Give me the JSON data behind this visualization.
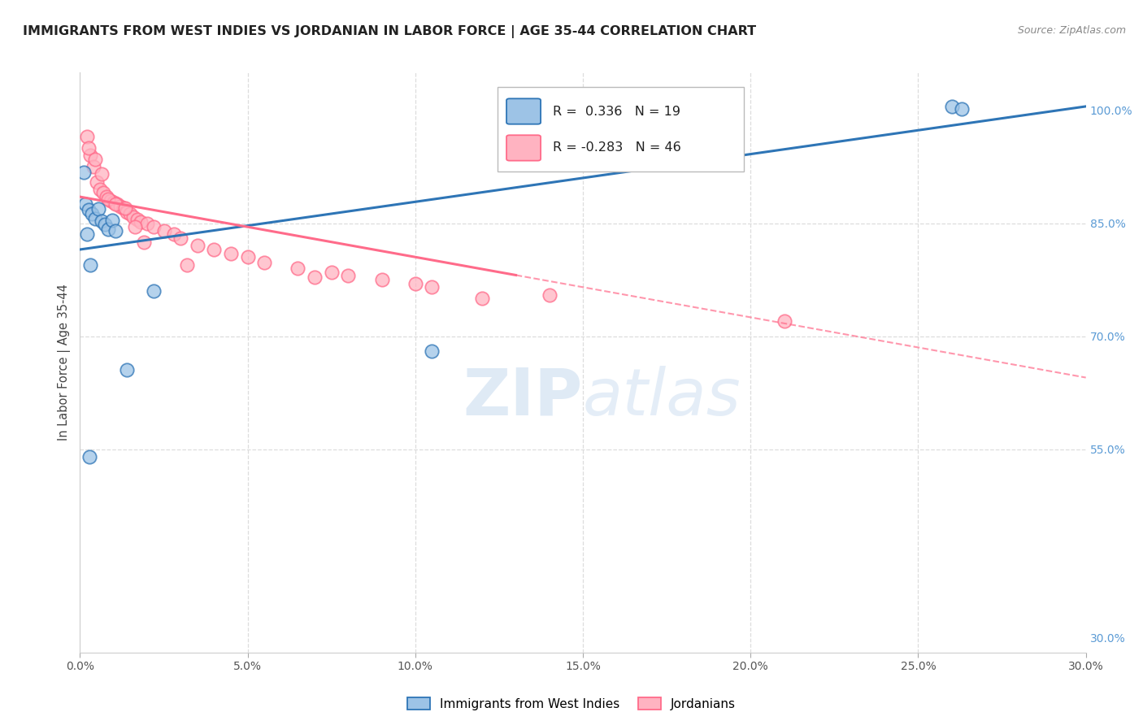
{
  "title": "IMMIGRANTS FROM WEST INDIES VS JORDANIAN IN LABOR FORCE | AGE 35-44 CORRELATION CHART",
  "source": "Source: ZipAtlas.com",
  "xlabel_vals": [
    0.0,
    5.0,
    10.0,
    15.0,
    20.0,
    25.0,
    30.0
  ],
  "xlabel_ticks": [
    "0.0%",
    "5.0%",
    "10.0%",
    "15.0%",
    "20.0%",
    "25.0%",
    "30.0%"
  ],
  "xmin": 0.0,
  "xmax": 30.0,
  "ymin": 28.0,
  "ymax": 105.0,
  "right_ytick_vals": [
    100.0,
    85.0,
    70.0,
    55.0,
    30.0
  ],
  "right_ytick_labels": [
    "100.0%",
    "85.0%",
    "70.0%",
    "55.0%",
    "30.0%"
  ],
  "hgrid_vals": [
    85.0,
    70.0,
    55.0
  ],
  "vgrid_vals": [
    5.0,
    10.0,
    15.0,
    20.0,
    25.0
  ],
  "legend_blue_R": "0.336",
  "legend_blue_N": "19",
  "legend_pink_R": "-0.283",
  "legend_pink_N": "46",
  "legend_label_blue": "Immigrants from West Indies",
  "legend_label_pink": "Jordanians",
  "blue_fill": "#9DC3E6",
  "blue_edge": "#2E75B6",
  "pink_fill": "#FFB3C1",
  "pink_edge": "#FF6B8A",
  "blue_line_color": "#2E75B6",
  "pink_line_color": "#FF6B8A",
  "right_axis_color": "#5B9BD5",
  "watermark_color": "#C5D9EE",
  "gridline_color": "#DDDDDD",
  "blue_trend_x0": 0.0,
  "blue_trend_y0": 81.5,
  "blue_trend_x1": 30.0,
  "blue_trend_y1": 100.5,
  "pink_trend_x0": 0.0,
  "pink_trend_y0": 88.5,
  "pink_trend_x1": 30.0,
  "pink_trend_y1": 64.5,
  "pink_solid_end_x": 13.0,
  "blue_scatter_x": [
    0.15,
    0.25,
    0.35,
    0.45,
    0.55,
    0.65,
    0.75,
    0.85,
    0.95,
    1.05,
    0.3,
    2.2,
    1.4,
    10.5,
    0.2,
    0.28,
    26.0,
    26.3,
    0.1
  ],
  "blue_scatter_y": [
    87.5,
    86.8,
    86.2,
    85.6,
    86.9,
    85.3,
    84.8,
    84.2,
    85.4,
    84.0,
    79.5,
    76.0,
    65.5,
    68.0,
    83.5,
    54.0,
    100.5,
    100.2,
    91.8
  ],
  "pink_scatter_x": [
    0.2,
    0.3,
    0.4,
    0.5,
    0.6,
    0.7,
    0.8,
    0.9,
    1.0,
    1.1,
    1.2,
    1.3,
    1.4,
    1.5,
    1.6,
    1.7,
    1.8,
    2.0,
    2.2,
    2.5,
    2.8,
    3.0,
    3.5,
    4.0,
    4.5,
    5.0,
    5.5,
    6.5,
    7.5,
    8.0,
    9.0,
    10.0,
    10.5,
    12.0,
    14.0,
    21.0,
    0.25,
    0.45,
    0.65,
    0.85,
    1.05,
    1.35,
    1.65,
    1.9,
    3.2,
    7.0
  ],
  "pink_scatter_y": [
    96.5,
    94.0,
    92.5,
    90.5,
    89.5,
    89.0,
    88.5,
    88.0,
    87.8,
    87.5,
    87.2,
    87.0,
    86.5,
    86.2,
    85.8,
    85.5,
    85.2,
    85.0,
    84.5,
    84.0,
    83.5,
    83.0,
    82.0,
    81.5,
    81.0,
    80.5,
    79.8,
    79.0,
    78.5,
    78.0,
    77.5,
    77.0,
    76.5,
    75.0,
    75.5,
    72.0,
    95.0,
    93.5,
    91.5,
    88.2,
    87.5,
    87.0,
    84.5,
    82.5,
    79.5,
    77.8
  ]
}
